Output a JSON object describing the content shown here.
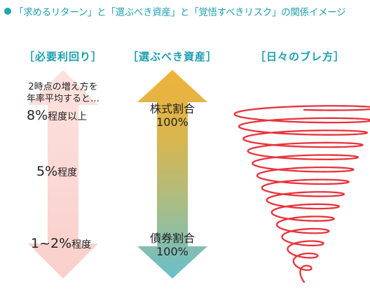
{
  "title": "「求めるリターン」と「選ぶべき資産」と「覚悟すべきリスク」の関係イメージ",
  "columns": {
    "return": {
      "heading": "［必要利回り］",
      "note_line1": "2時点の増え方を",
      "note_line2": "年率平均すると…",
      "levels": [
        {
          "value": "8%",
          "suffix": "程度以上"
        },
        {
          "value": "5%",
          "suffix": "程度"
        },
        {
          "value": "1~2%",
          "suffix": "程度"
        }
      ]
    },
    "asset": {
      "heading": "［選ぶべき資産］",
      "top_label": "株式割合",
      "top_value": "100%",
      "bottom_label": "債券割合",
      "bottom_value": "100%"
    },
    "risk": {
      "heading": "［日々のブレ方］"
    }
  },
  "colors": {
    "accent": "#1fa7b3",
    "pink_arrow": "#fbd6d2",
    "gold": "#e7b23c",
    "teal": "#6cbfc9",
    "squiggle": "#e8333c"
  },
  "icons": [
    "bullet-dot-icon",
    "double-arrow-icon",
    "squiggle-line-icon"
  ]
}
